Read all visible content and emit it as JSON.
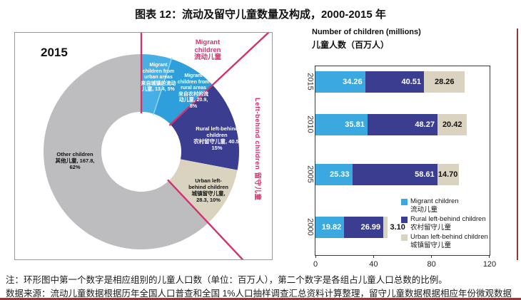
{
  "title": "图表 12：流动及留守儿童数量及构成，2000-2015 年",
  "colors": {
    "migrant_blue": "#3BA8E0",
    "migrant_urban_blue": "#47AFE3",
    "migrant_rural_blue": "#2E9FDA",
    "rural_leftbehind_dark_blue": "#3B3D90",
    "urban_leftbehind_beige": "#D9D3BF",
    "other_gray": "#BDBDC0",
    "pink": "#D2326E",
    "cyan_divider": "#8FD9F2",
    "dark_red_rule": "#8E3A38"
  },
  "chart_data": [
    {
      "type": "pie",
      "subtype": "donut",
      "year": "2015",
      "units": "millions of children",
      "note": "first number = children in millions, second = share of all children",
      "segments": [
        {
          "id": "migrant-urban",
          "label_en": "Migrant children from urban areas",
          "label_zh": "来自城镇的流动儿童",
          "value": 13.4,
          "pct": 5,
          "color": "#47AFE3",
          "text_lines": [
            "Migrant",
            "children from",
            "urban areas",
            "来自城镇的流动",
            "儿童, 13.4, 5%"
          ]
        },
        {
          "id": "migrant-rural",
          "label_en": "Migrant children from rural areas",
          "label_zh": "来自农村的流动儿童",
          "value": 20.9,
          "pct": 8,
          "color": "#2E9FDA",
          "text_lines": [
            "Migrant",
            "children from",
            "rural areas",
            "来自农村的流",
            "动儿童, 20.9,",
            "8%"
          ]
        },
        {
          "id": "rural-left-behind",
          "label_en": "Rural left-behind children",
          "label_zh": "农村留守儿童",
          "value": 40.5,
          "pct": 15,
          "color": "#3B3D90",
          "text_lines": [
            "Rural left-behind",
            "children",
            "农村留守儿童, 40.5,",
            "15%"
          ]
        },
        {
          "id": "urban-left-behind",
          "label_en": "Urban left-behind children",
          "label_zh": "城镇留守儿童",
          "value": 28.3,
          "pct": 10,
          "color": "#D9D3BF",
          "text_lines": [
            "Urban left-",
            "behind children",
            "城镇留守儿童,",
            "28.3, 10%"
          ]
        },
        {
          "id": "other",
          "label_en": "Other children",
          "label_zh": "其他儿童",
          "value": 167.8,
          "pct": 62,
          "color": "#BDBDC0",
          "text_lines": [
            "Other children",
            "其他儿童, 167.8,",
            "62%"
          ]
        }
      ],
      "group_labels": {
        "migrant": {
          "lines": [
            "Migrant",
            "children",
            "流动儿童"
          ]
        },
        "left_behind": {
          "text": "Left-behind children  留守儿童"
        }
      }
    },
    {
      "type": "bar",
      "orientation": "horizontal",
      "stacked": true,
      "title_en": "Number of children (millions)",
      "title_zh": "儿童人数（百万人）",
      "categories": [
        "2015",
        "2010",
        "2005",
        "2000"
      ],
      "series": [
        {
          "name_en": "Migrant children",
          "name_zh": "流动儿童",
          "color": "#3BA8E0",
          "values": [
            34.26,
            35.81,
            25.33,
            19.82
          ]
        },
        {
          "name_en": "Rural left-behind children",
          "name_zh": "农村留守儿童",
          "color": "#3B3D90",
          "values": [
            40.51,
            48.27,
            58.61,
            26.99
          ]
        },
        {
          "name_en": "Urban left-behind children",
          "name_zh": "城镇留守儿童",
          "color": "#D9D3BF",
          "values": [
            28.26,
            20.42,
            14.7,
            3.1
          ]
        }
      ],
      "xlim": [
        0,
        120
      ],
      "x_ticks": [
        0,
        40,
        80,
        120
      ],
      "grid": false,
      "legend_position": "inside bottom-right"
    }
  ],
  "notes": {
    "note1": "注：环形图中第一个数字是相应组别的儿童人口数（单位：百万人），第二个数字是各组占儿童人口总数的比例。",
    "note2": "数据来源：流动儿童数据根据历年全国人口普查和全国 1%人口抽样调查汇总资料计算整理，留守儿童数据根据相应年份微观数据计算。"
  }
}
